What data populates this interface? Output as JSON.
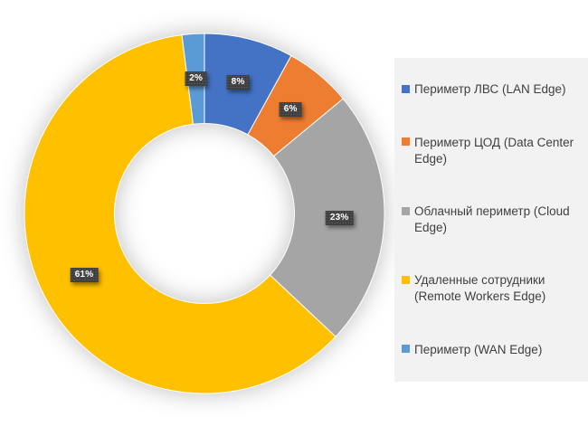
{
  "chart_data": {
    "type": "pie",
    "subtype": "donut",
    "title": "",
    "donut_hole_ratio": 0.5,
    "start_angle_deg": 0,
    "direction": "clockwise",
    "legend_position": "right",
    "total": 100,
    "categories": [
      "Периметр ЛВС (LAN Edge)",
      "Периметр ЦОД (Data Center Edge)",
      "Облачный периметр (Cloud Edge)",
      "Удаленные сотрудники (Remote Workers Edge)",
      "Периметр (WAN Edge)"
    ],
    "values": [
      8,
      6,
      23,
      61,
      2
    ],
    "slices": [
      {
        "label": "Периметр ЛВС (LAN Edge)",
        "value": 8,
        "data_label": "8%",
        "color": "#4472C4"
      },
      {
        "label": "Периметр ЦОД (Data Center Edge)",
        "value": 6,
        "data_label": "6%",
        "color": "#ED7D31"
      },
      {
        "label": "Облачный периметр (Cloud Edge)",
        "value": 23,
        "data_label": "23%",
        "color": "#A5A5A5"
      },
      {
        "label": "Удаленные сотрудники (Remote Workers Edge)",
        "value": 61,
        "data_label": "61%",
        "color": "#FFC000"
      },
      {
        "label": "Периметр (WAN Edge)",
        "value": 2,
        "data_label": "2%",
        "color": "#5B9BD5"
      }
    ],
    "data_label_style": {
      "background": "#3D3D3D",
      "text_color": "#FFFFFF"
    },
    "legend_style": {
      "background": "#F2F2F2",
      "text_color": "#3F3F3F"
    }
  }
}
